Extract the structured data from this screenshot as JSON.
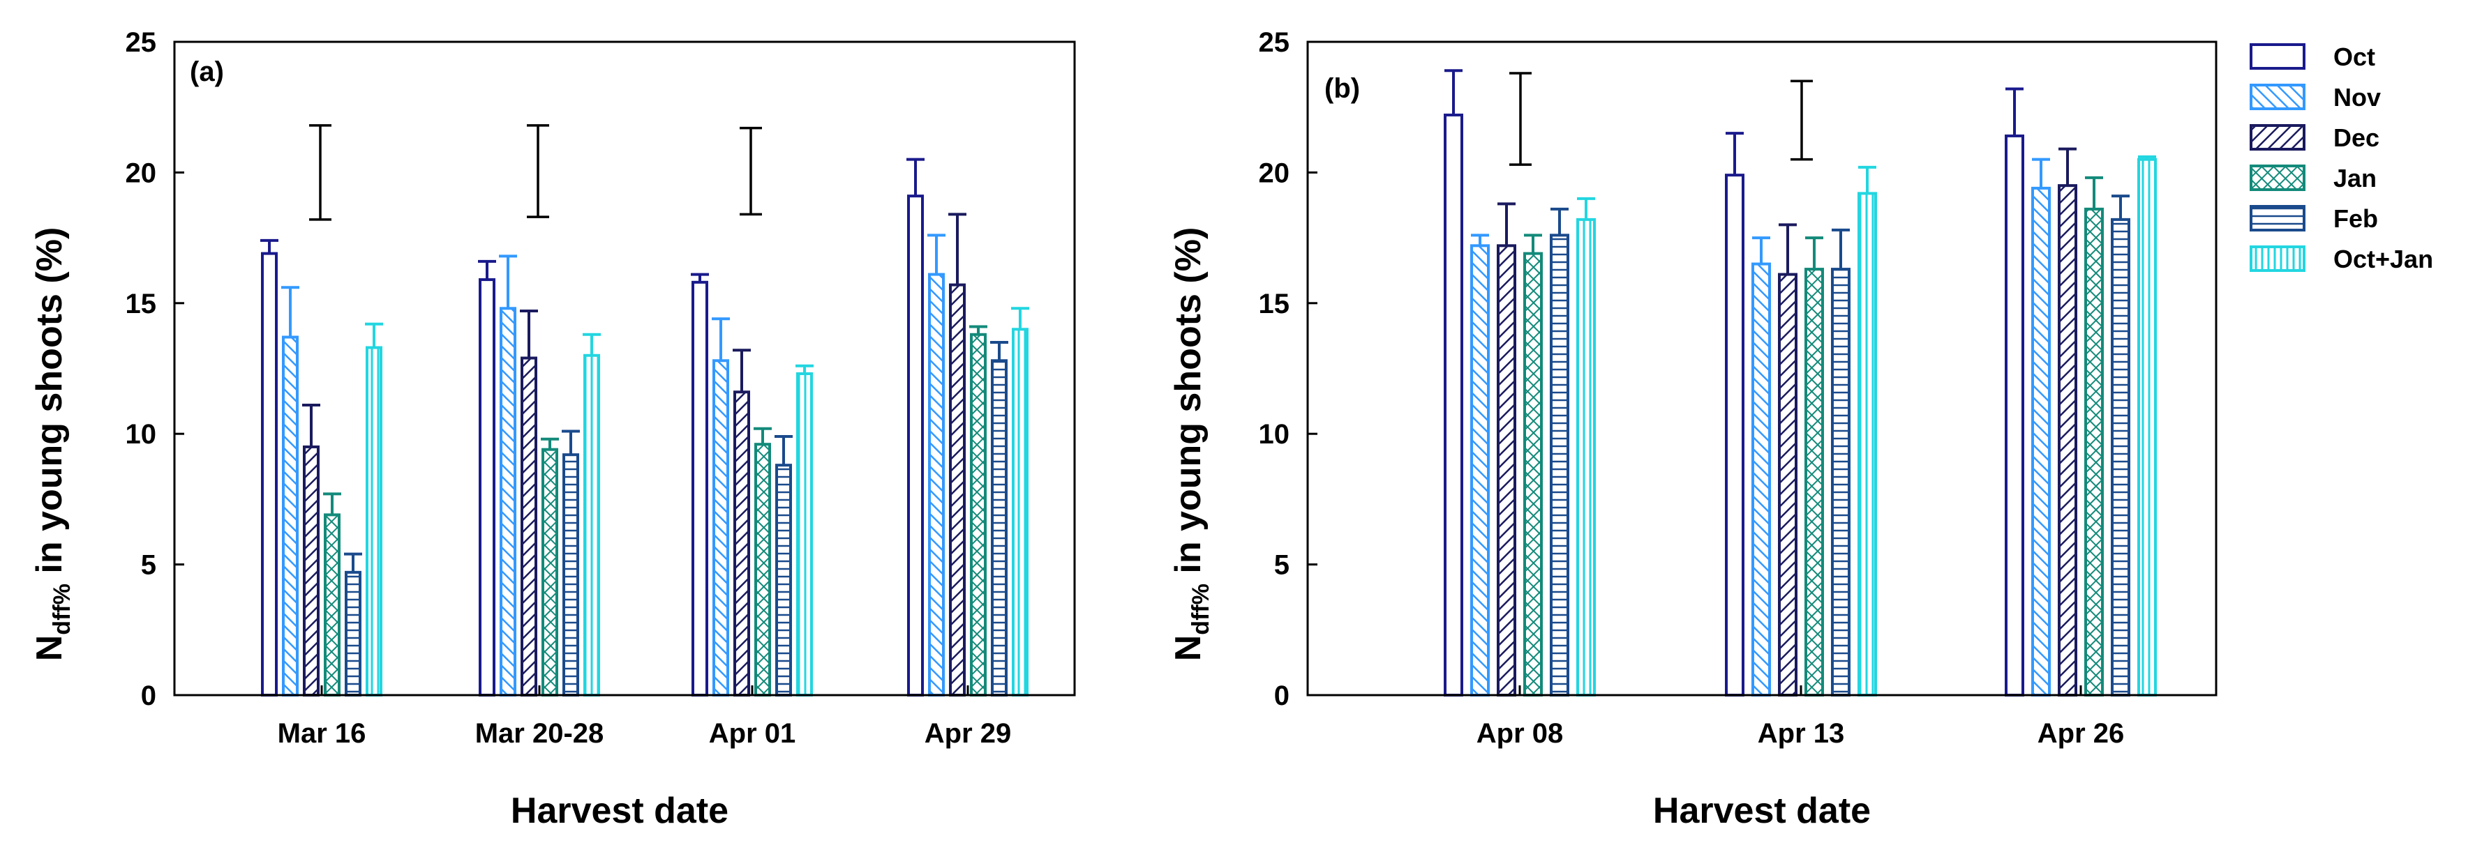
{
  "colors": {
    "Oct": "#1a1a8c",
    "Nov": "#3399ff",
    "Dec": "#1a1a5e",
    "Jan": "#138a7a",
    "Feb": "#1a4a8c",
    "Oct+Jan": "#22d6e0",
    "axis": "#000000",
    "lsd": "#000000"
  },
  "legend": [
    "Oct",
    "Nov",
    "Dec",
    "Jan",
    "Feb",
    "Oct+Jan"
  ],
  "chart_data": [
    {
      "type": "bar",
      "panel_label": "(a)",
      "title": "",
      "ylabel": "N",
      "ylabel_sub": "dff%",
      "ylabel_rest": " in young shoots (%)",
      "xlabel": "Harvest date",
      "ylim": [
        0,
        25
      ],
      "yticks": [
        0,
        5,
        10,
        15,
        20,
        25
      ],
      "categories": [
        "Mar 16",
        "Mar 20-28",
        "Apr 01",
        "Apr 29"
      ],
      "series": [
        {
          "name": "Oct",
          "values": [
            16.9,
            15.9,
            15.8,
            19.1
          ],
          "errors": [
            0.5,
            0.7,
            0.3,
            1.4
          ]
        },
        {
          "name": "Nov",
          "values": [
            13.7,
            14.8,
            12.8,
            16.1
          ],
          "errors": [
            1.9,
            2.0,
            1.6,
            1.5
          ]
        },
        {
          "name": "Dec",
          "values": [
            9.5,
            12.9,
            11.6,
            15.7
          ],
          "errors": [
            1.6,
            1.8,
            1.6,
            2.7
          ]
        },
        {
          "name": "Jan",
          "values": [
            6.9,
            9.4,
            9.6,
            13.8
          ],
          "errors": [
            0.8,
            0.4,
            0.6,
            0.3
          ]
        },
        {
          "name": "Feb",
          "values": [
            4.7,
            9.2,
            8.8,
            12.8
          ],
          "errors": [
            0.7,
            0.9,
            1.1,
            0.7
          ]
        },
        {
          "name": "Oct+Jan",
          "values": [
            13.3,
            13.0,
            12.3,
            14.0
          ],
          "errors": [
            0.9,
            0.8,
            0.3,
            0.8
          ]
        }
      ],
      "lsd": [
        {
          "category": "Mar 16",
          "low": 18.2,
          "high": 21.8
        },
        {
          "category": "Mar 20-28",
          "low": 18.3,
          "high": 21.8
        },
        {
          "category": "Apr 01",
          "low": 18.4,
          "high": 21.7
        }
      ]
    },
    {
      "type": "bar",
      "panel_label": "(b)",
      "title": "",
      "ylabel": "N",
      "ylabel_sub": "dff%",
      "ylabel_rest": " in young shoots (%)",
      "xlabel": "Harvest date",
      "ylim": [
        0,
        25
      ],
      "yticks": [
        0,
        5,
        10,
        15,
        20,
        25
      ],
      "categories": [
        "Apr 08",
        "Apr 13",
        "Apr 26"
      ],
      "series": [
        {
          "name": "Oct",
          "values": [
            22.2,
            19.9,
            21.4
          ],
          "errors": [
            1.7,
            1.6,
            1.8
          ]
        },
        {
          "name": "Nov",
          "values": [
            17.2,
            16.5,
            19.4
          ],
          "errors": [
            0.4,
            1.0,
            1.1
          ]
        },
        {
          "name": "Dec",
          "values": [
            17.2,
            16.1,
            19.5
          ],
          "errors": [
            1.6,
            1.9,
            1.4
          ]
        },
        {
          "name": "Jan",
          "values": [
            16.9,
            16.3,
            18.6
          ],
          "errors": [
            0.7,
            1.2,
            1.2
          ]
        },
        {
          "name": "Feb",
          "values": [
            17.6,
            16.3,
            18.2
          ],
          "errors": [
            1.0,
            1.5,
            0.9
          ]
        },
        {
          "name": "Oct+Jan",
          "values": [
            18.2,
            19.2,
            20.5
          ],
          "errors": [
            0.8,
            1.0,
            0.1
          ]
        }
      ],
      "lsd": [
        {
          "category": "Apr 08",
          "low": 20.3,
          "high": 23.8
        },
        {
          "category": "Apr 13",
          "low": 20.5,
          "high": 23.5
        }
      ]
    }
  ]
}
